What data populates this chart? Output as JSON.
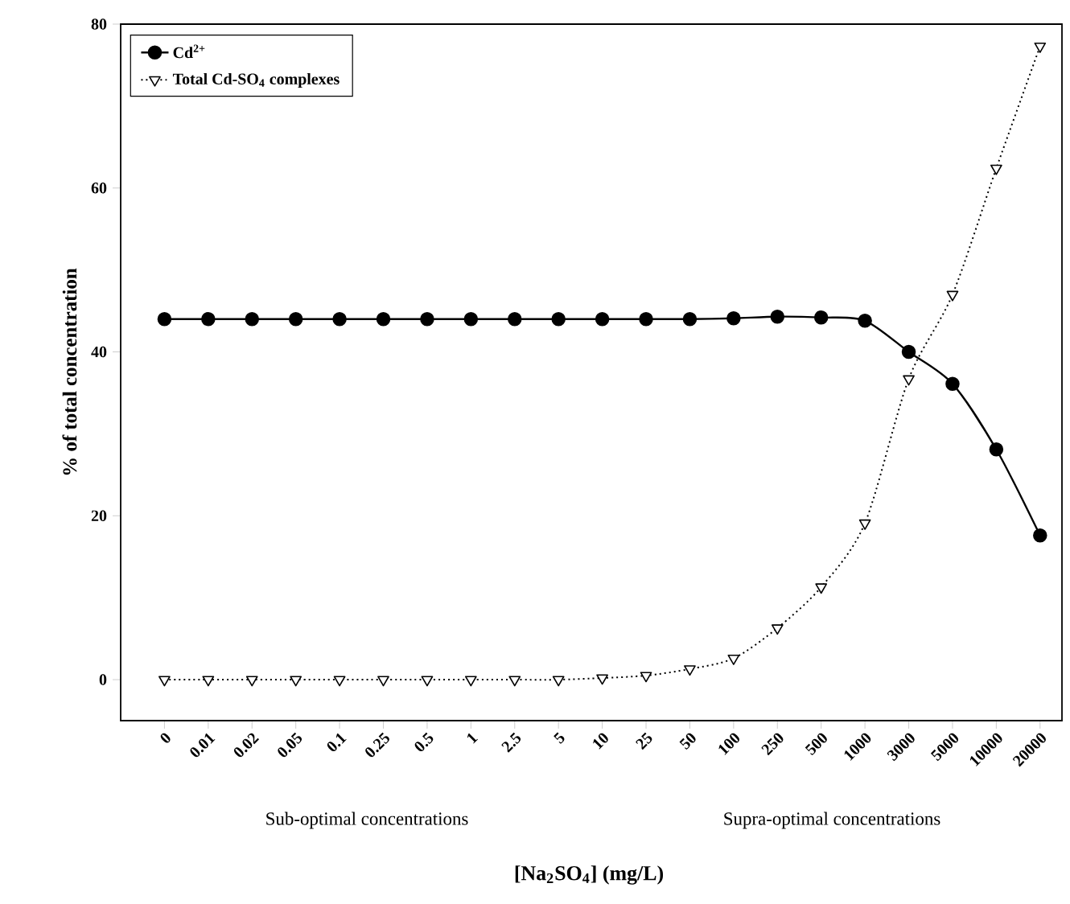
{
  "chart_data": {
    "type": "line",
    "xlabel": "[Na$_{2}$SO$_{4}$] (mg/L)",
    "ylabel": "% of total concentration",
    "categories": [
      "0",
      "0.01",
      "0.02",
      "0.05",
      "0.1",
      "0.25",
      "0.5",
      "1",
      "2.5",
      "5",
      "10",
      "25",
      "50",
      "100",
      "250",
      "500",
      "1000",
      "3000",
      "5000",
      "10000",
      "20000"
    ],
    "series": [
      {
        "name": "Cd$^{2+}$",
        "color": "#000000",
        "marker": "circle",
        "line_style": "solid",
        "values": [
          44,
          44,
          44,
          44,
          44,
          44,
          44,
          44,
          44,
          44,
          44,
          44,
          44,
          44.1,
          44.3,
          44.2,
          43.8,
          40.0,
          36.1,
          28.1,
          17.6
        ]
      },
      {
        "name": "Total Cd-SO$_{4}$ complexes",
        "color": "#000000",
        "marker": "triangle",
        "line_style": "dotted",
        "values": [
          0,
          0,
          0,
          0,
          0,
          0,
          0,
          0,
          0,
          0,
          0.2,
          0.5,
          1.3,
          2.6,
          6.3,
          11.3,
          19.1,
          36.7,
          47.0,
          62.4,
          77.3
        ]
      }
    ],
    "ylim": [
      -5,
      80
    ],
    "yticks": [
      0,
      20,
      40,
      60,
      80
    ],
    "legend": "top left",
    "grid": false,
    "annotations": [
      "Sub-optimal concentrations",
      "Supra-optimal concentrations"
    ]
  }
}
